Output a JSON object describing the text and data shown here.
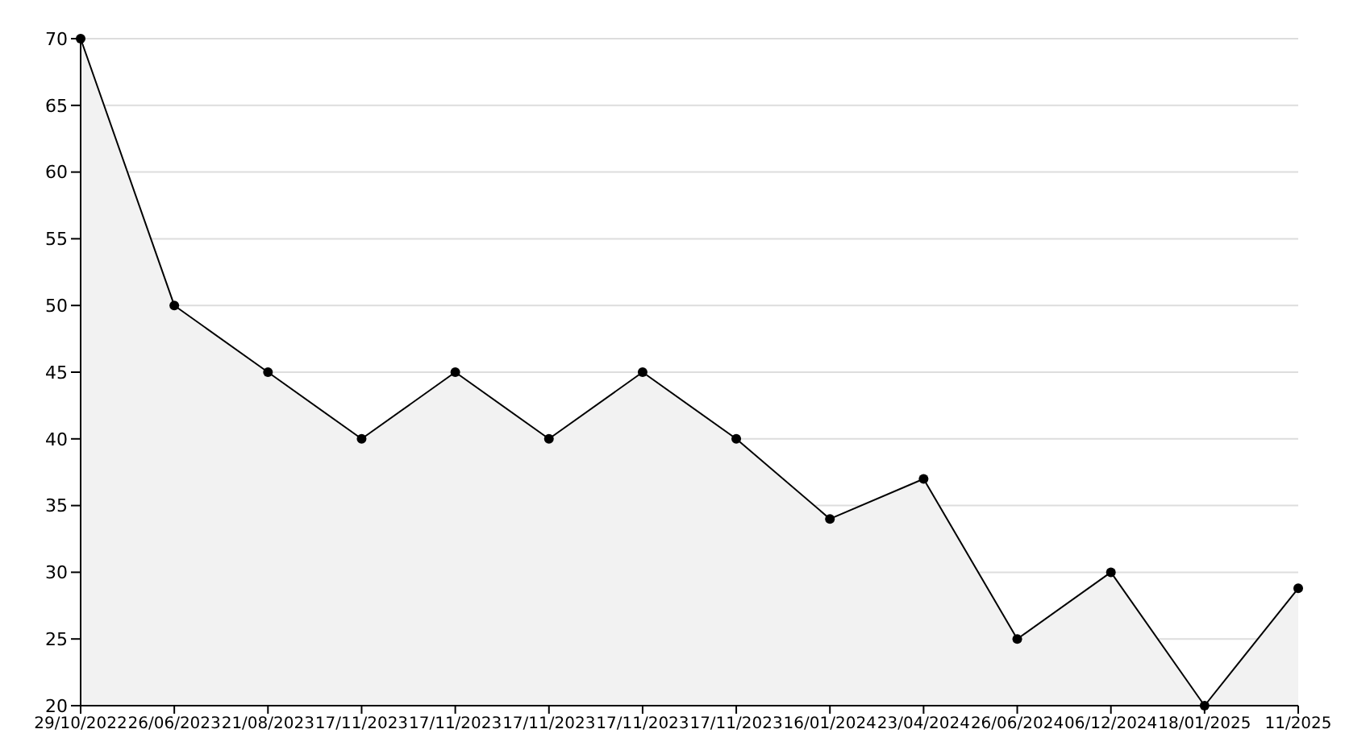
{
  "chart_data": {
    "type": "area",
    "categories": [
      "29/10/2022",
      "26/06/2023",
      "21/08/2023",
      "17/11/2023",
      "17/11/2023",
      "17/11/2023",
      "17/11/2023",
      "17/11/2023",
      "16/01/2024",
      "23/04/2024",
      "26/06/2024",
      "06/12/2024",
      "18/01/2025",
      "11/2025"
    ],
    "series": [
      {
        "color": "#000000",
        "values": [
          70,
          50,
          45,
          40,
          45,
          40,
          45,
          40,
          34,
          37,
          25,
          30,
          20,
          28.8
        ]
      }
    ],
    "ylim": [
      20,
      70
    ],
    "yticks": [
      20,
      25,
      30,
      35,
      40,
      45,
      50,
      55,
      60,
      65,
      70
    ],
    "grid": "y",
    "marker": "circle",
    "line_style": "solid",
    "legend": false
  }
}
